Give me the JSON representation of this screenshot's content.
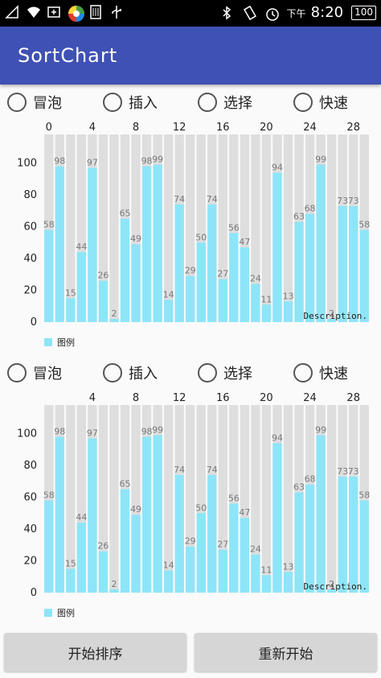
{
  "status_bar": {
    "time_prefix": "下午",
    "time": "8:20",
    "battery": "100",
    "icons_left": [
      "signal-icon",
      "wifi-icon",
      "add-icon",
      "browser-icon",
      "sim-icon",
      "usb-icon"
    ],
    "icons_right": [
      "bluetooth-icon",
      "vibrate-icon",
      "alarm-icon",
      "battery-icon"
    ]
  },
  "app_bar": {
    "title": "SortChart"
  },
  "sort_options": [
    "冒泡",
    "插入",
    "选择",
    "快速"
  ],
  "buttons": {
    "start": "开始排序",
    "restart": "重新开始"
  },
  "colors": {
    "bar": "#8ee5f8",
    "track": "#dedede",
    "app_bar": "#3f51b5"
  },
  "chart_data": [
    {
      "type": "bar",
      "x": [
        0,
        1,
        2,
        3,
        4,
        5,
        6,
        7,
        8,
        9,
        10,
        11,
        12,
        13,
        14,
        15,
        16,
        17,
        18,
        19,
        20,
        21,
        22,
        23,
        24,
        25,
        26,
        27,
        28,
        29
      ],
      "values": [
        58,
        98,
        15,
        44,
        97,
        26,
        2,
        65,
        49,
        98,
        99,
        14,
        74,
        29,
        50,
        74,
        27,
        56,
        47,
        24,
        11,
        94,
        13,
        63,
        68,
        99,
        2,
        73,
        73,
        58
      ],
      "background_max": 118,
      "x_ticks": [
        "0",
        "4",
        "8",
        "12",
        "16",
        "20",
        "24",
        "28"
      ],
      "x_tick_values": [
        0,
        4,
        8,
        12,
        16,
        20,
        24,
        28
      ],
      "y_ticks": [
        "0",
        "20",
        "40",
        "60",
        "80",
        "100"
      ],
      "ylim": [
        0,
        118
      ],
      "description": "Description.",
      "legend": "图例"
    },
    {
      "type": "bar",
      "x": [
        0,
        1,
        2,
        3,
        4,
        5,
        6,
        7,
        8,
        9,
        10,
        11,
        12,
        13,
        14,
        15,
        16,
        17,
        18,
        19,
        20,
        21,
        22,
        23,
        24,
        25,
        26,
        27,
        28,
        29
      ],
      "values": [
        58,
        98,
        15,
        44,
        97,
        26,
        2,
        65,
        49,
        98,
        99,
        14,
        74,
        29,
        50,
        74,
        27,
        56,
        47,
        24,
        11,
        94,
        13,
        63,
        68,
        99,
        2,
        73,
        73,
        58
      ],
      "background_max": 118,
      "x_ticks": [
        "4",
        "8",
        "12",
        "16",
        "20",
        "24",
        "28"
      ],
      "x_tick_values": [
        4,
        8,
        12,
        16,
        20,
        24,
        28
      ],
      "y_ticks": [
        "0",
        "20",
        "40",
        "60",
        "80",
        "100"
      ],
      "ylim": [
        0,
        118
      ],
      "description": "Description.",
      "legend": "图例"
    }
  ]
}
